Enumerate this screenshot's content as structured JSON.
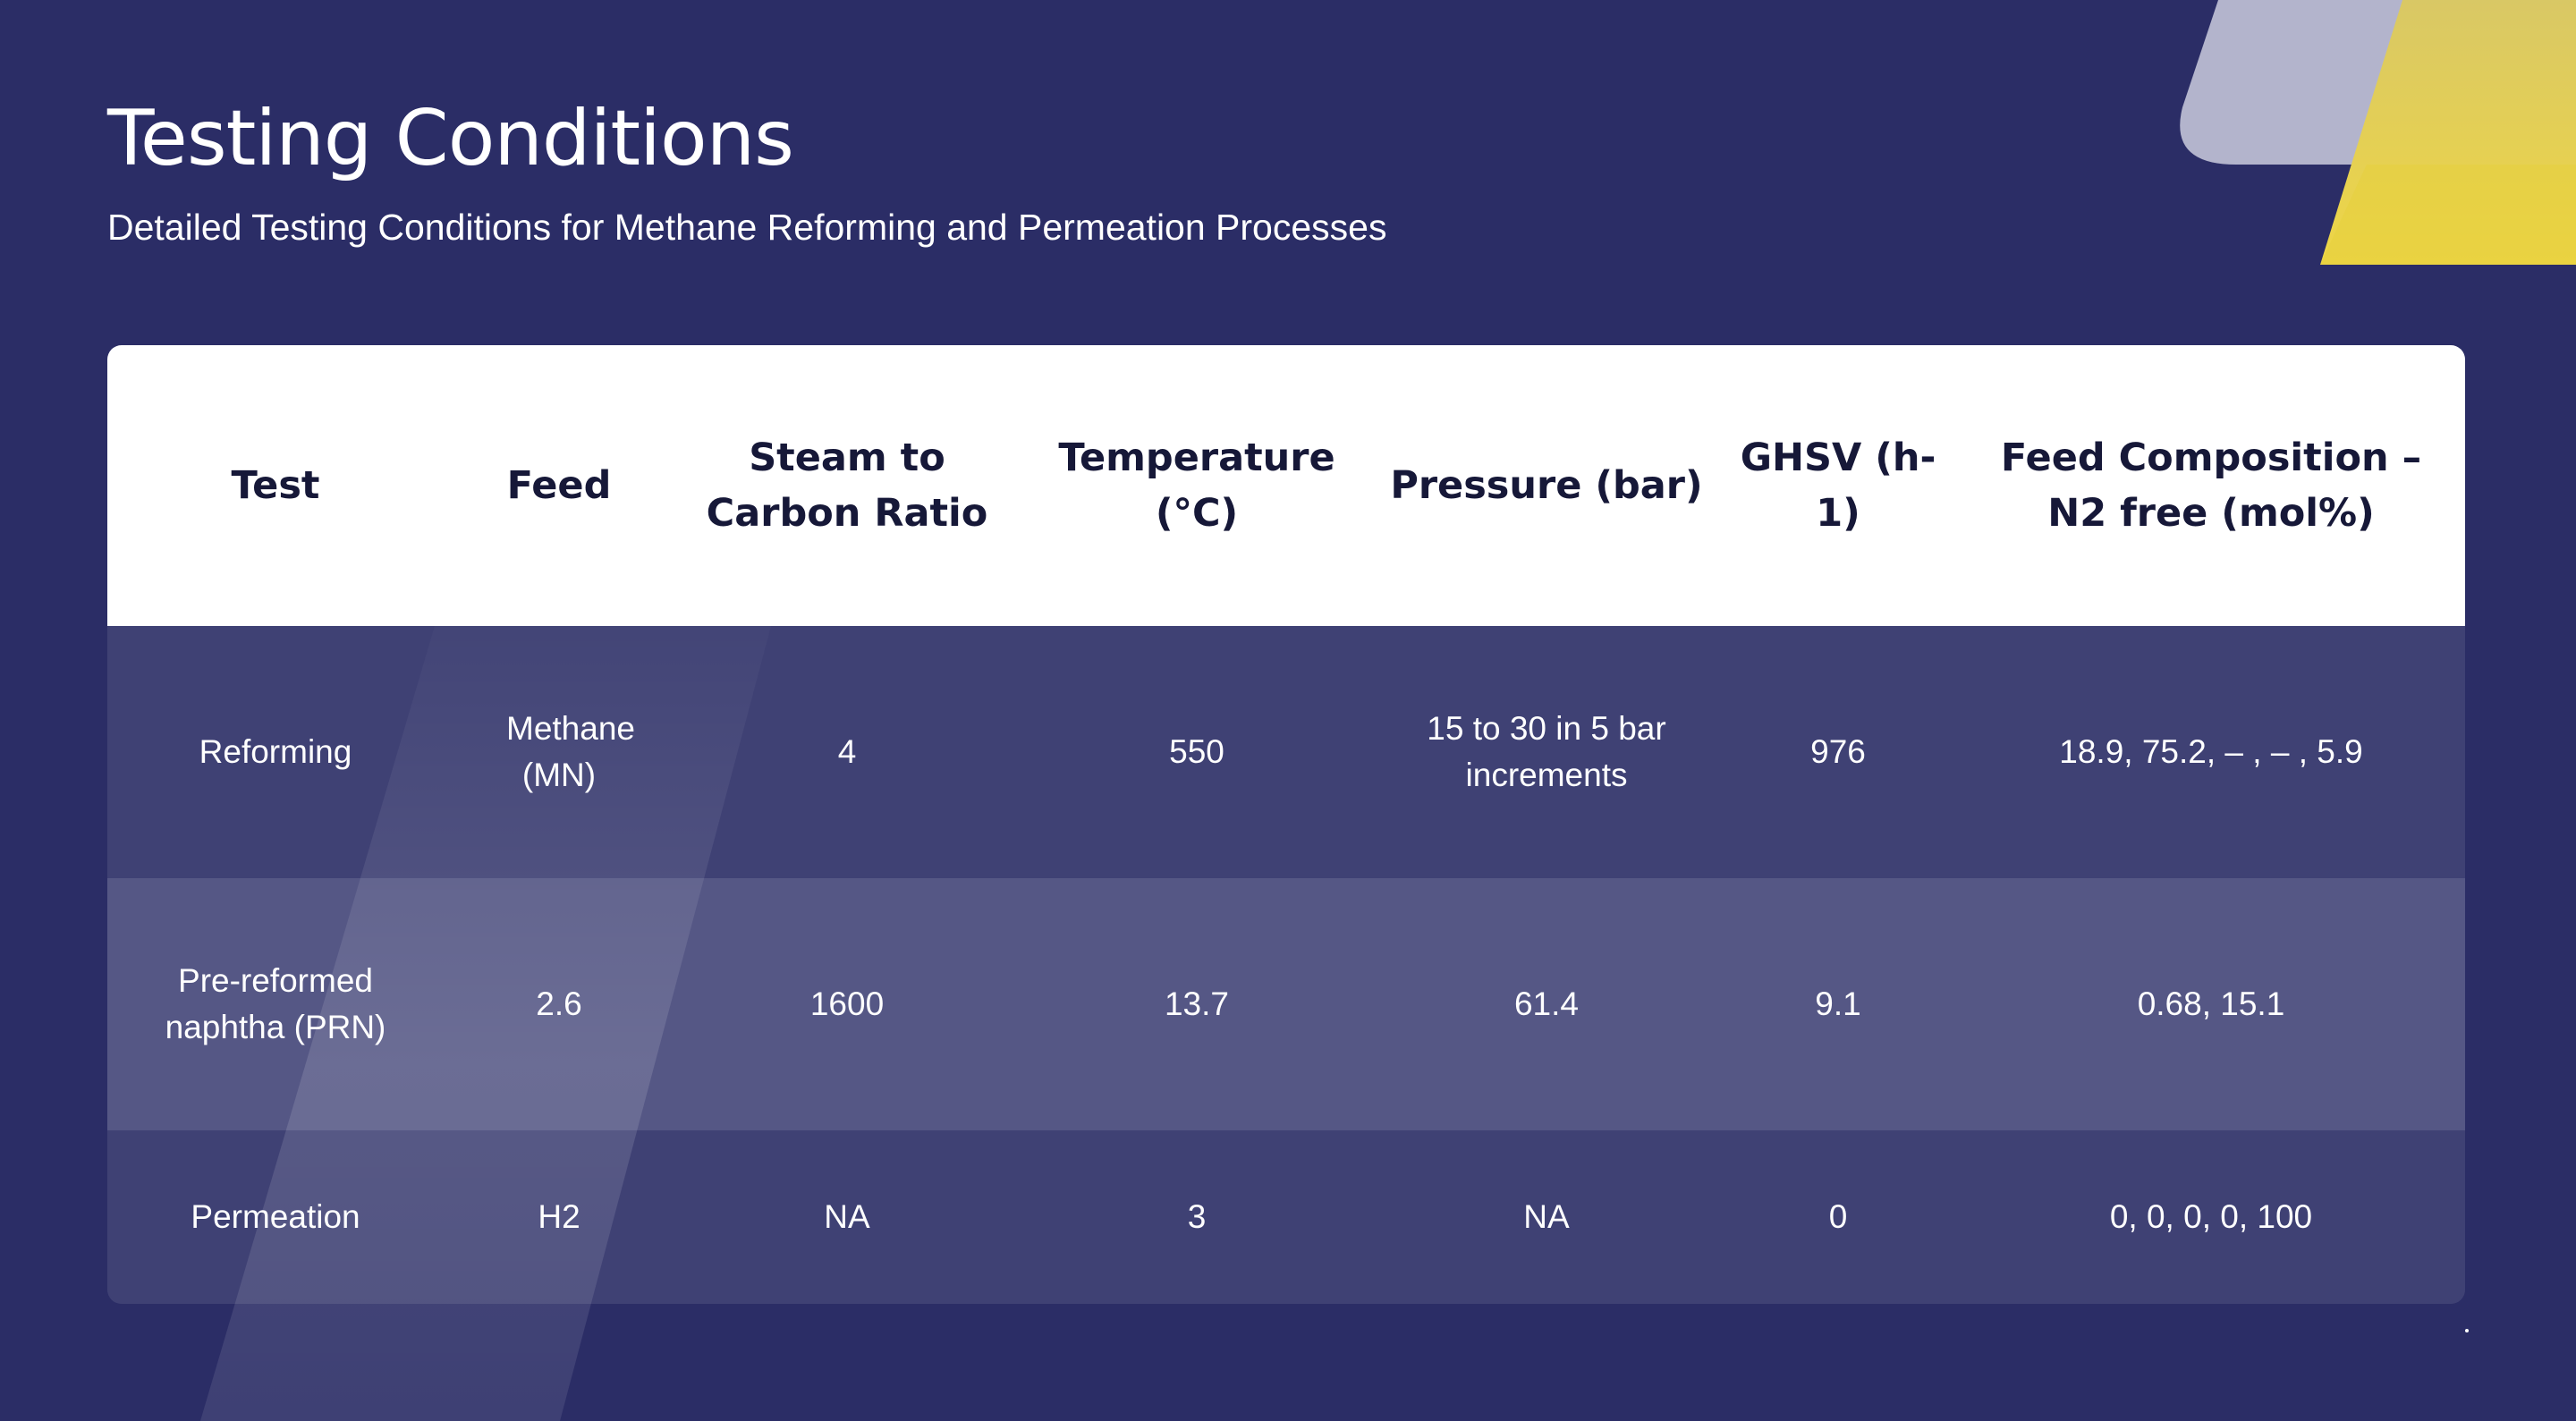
{
  "header": {
    "title": "Testing Conditions",
    "subtitle": "Detailed Testing Conditions for Methane Reforming and Permeation Processes"
  },
  "colors": {
    "background": "#2b2d66",
    "accent_yellow": "#e8d24a",
    "accent_gray": "#b3b4cc",
    "header_row": "#ffffff",
    "row_dark": "#3f4174",
    "row_light": "#555785"
  },
  "table": {
    "columns": [
      "Test",
      "Feed",
      "Steam to Carbon Ratio",
      "Temperature (°C)",
      "Pressure (bar)",
      "GHSV (h-1)",
      "Feed Composition – N2 free (mol%)"
    ],
    "rows": [
      [
        "Reforming",
        "Methane (MN)",
        "4",
        "550",
        "15 to 30 in 5 bar increments",
        "976",
        "18.9, 75.2, – , – , 5.9"
      ],
      [
        "Pre-reformed naphtha (PRN)",
        "2.6",
        "1600",
        "13.7",
        "61.4",
        "9.1",
        "0.68, 15.1"
      ],
      [
        "Permeation",
        "H2",
        "NA",
        "3",
        "NA",
        "0",
        "0, 0, 0, 0, 100"
      ]
    ]
  }
}
